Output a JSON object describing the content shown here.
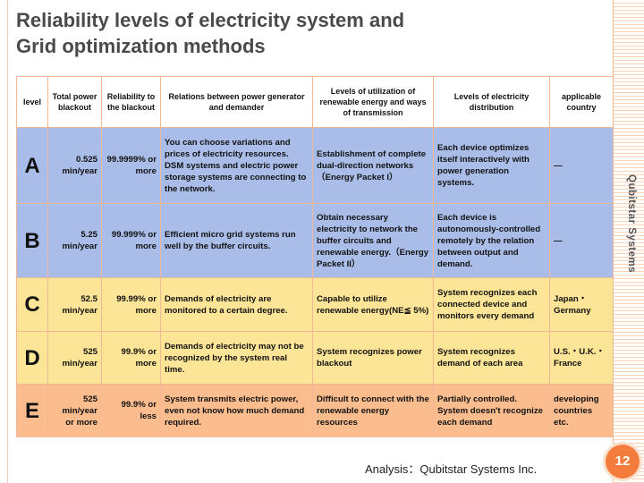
{
  "slide": {
    "title_line1": "Reliability levels of electricity system and",
    "title_line2": "Grid optimization methods",
    "side_label": "Qubitstar Systems",
    "footer": "Analysis：Qubitstar Systems Inc.",
    "page_number": "12",
    "accent_color": "#f47c3c"
  },
  "table": {
    "headers": [
      "level",
      "Total power blackout",
      "Reliability to the blackout",
      "Relations between power generator and demander",
      "Levels of utilization of renewable energy and ways of transmission",
      "Levels of electricity distribution",
      "applicable country"
    ],
    "rows": [
      {
        "level": "A",
        "blackout": "0.525 min/year",
        "reliability": "99.9999% or more",
        "relations": "You can choose variations and prices of electricity resources.  DSM systems and electric power storage systems are connecting to the network.",
        "renewable": "Establishment of complete dual-direction networks （Energy Packet I）",
        "distribution": "Each device optimizes itself interactively with power generation systems.",
        "country": "―",
        "color": "#a9bde8"
      },
      {
        "level": "B",
        "blackout": "5.25 min/year",
        "reliability": "99.999% or more",
        "relations": "Efficient micro grid systems run well by the buffer circuits.",
        "renewable": "Obtain necessary electricity to network the buffer circuits and renewable energy.（Energy Packet II）",
        "distribution": "Each device is autonomously-controlled remotely by the relation between output and demand.",
        "country": "―",
        "color": "#a9bde8"
      },
      {
        "level": "C",
        "blackout": "52.5 min/year",
        "reliability": "99.99% or more",
        "relations": "Demands of electricity are monitored to a certain degree.",
        "renewable": "Capable to utilize renewable energy(NE≦ 5%)",
        "distribution": "System recognizes each connected device and monitors every demand",
        "country": "Japan・Germany",
        "color": "#fce597"
      },
      {
        "level": "D",
        "blackout": "525 min/year",
        "reliability": "99.9% or more",
        "relations": "Demands of electricity may not be recognized by the system real time.",
        "renewable": "System recognizes power blackout",
        "distribution": "System recognizes demand of each area",
        "country": "U.S.・U.K.・France",
        "color": "#fce597"
      },
      {
        "level": "E",
        "blackout": "525 min/year or more",
        "reliability": "99.9% or less",
        "relations": "System transmits electric power, even not know how much demand required.",
        "renewable": "Difficult to connect with the renewable energy resources",
        "distribution": "Partially controlled. System doesn't recognize each demand",
        "country": "developing countries etc.",
        "color": "#fbbd8e"
      }
    ]
  }
}
